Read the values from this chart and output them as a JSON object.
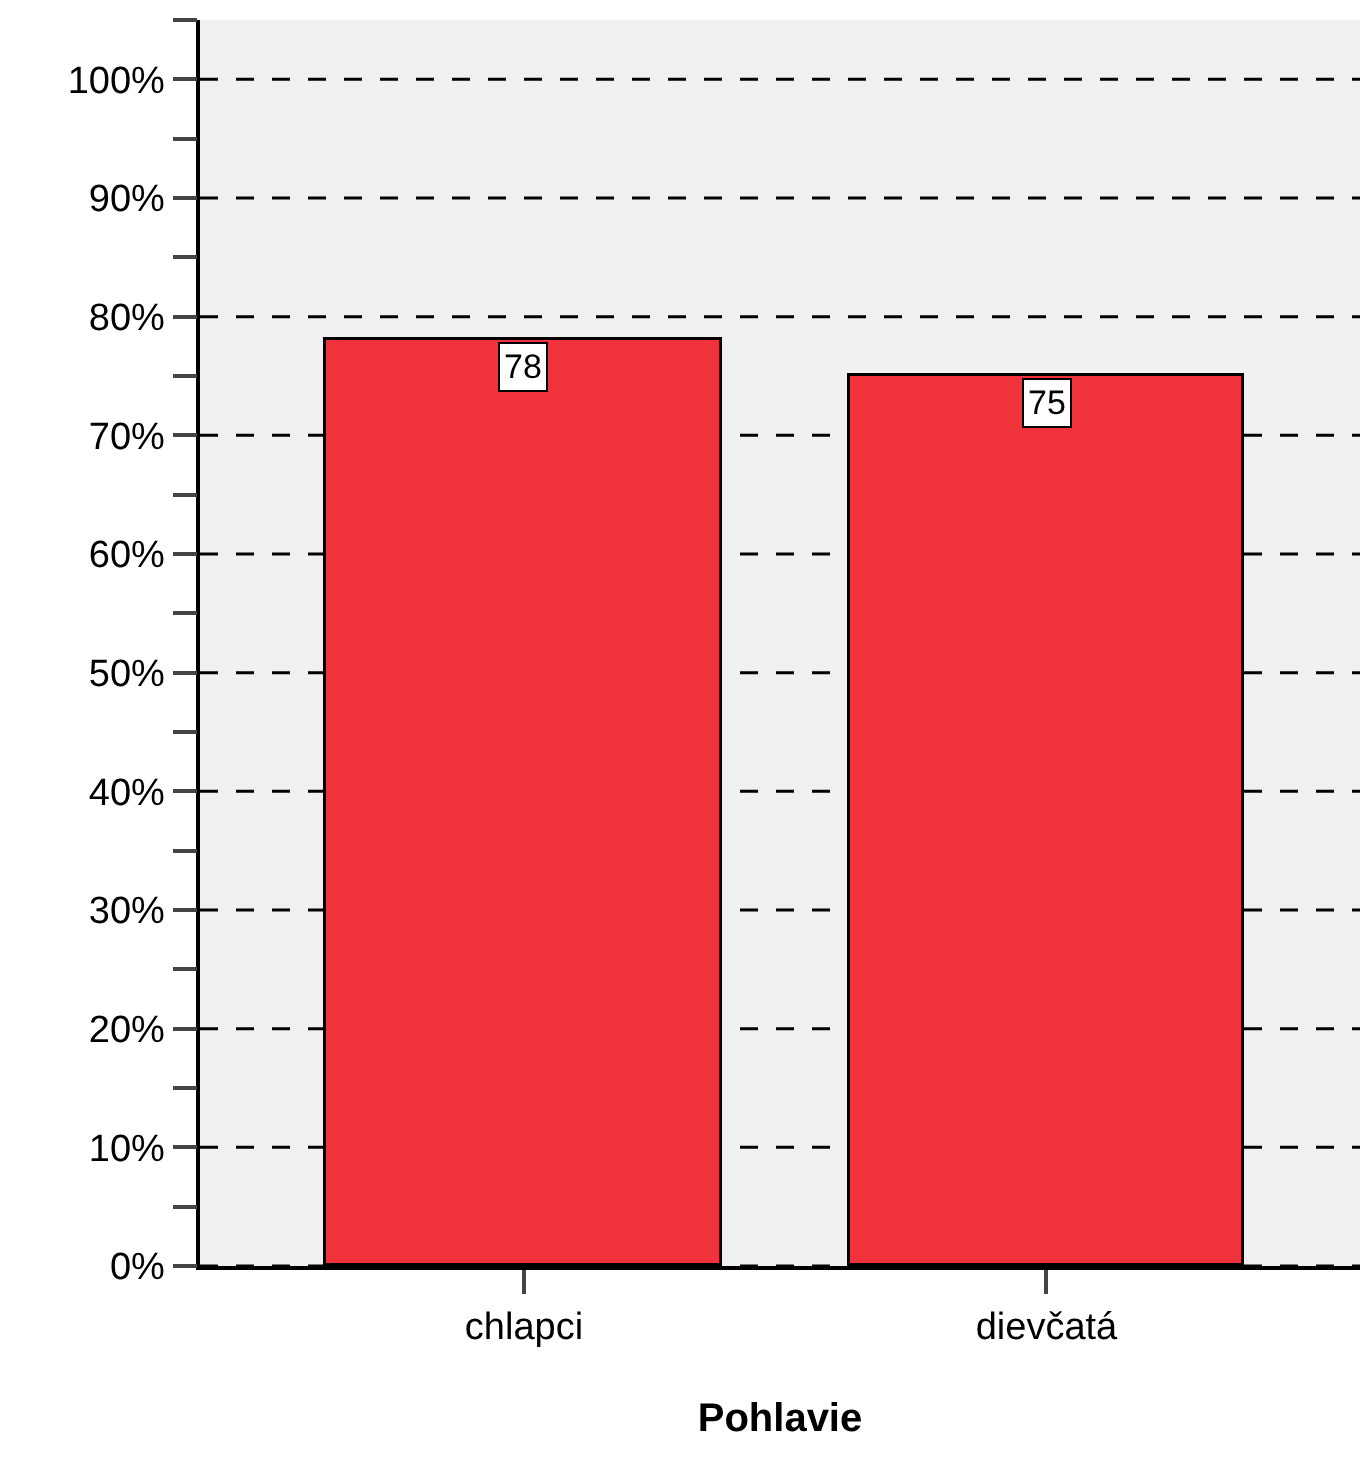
{
  "chart_data": {
    "type": "bar",
    "xlabel": "Pohlavie",
    "categories": [
      "chlapci",
      "dievčatá"
    ],
    "values": [
      78,
      75
    ],
    "color": "#f0333b",
    "data_labels": true,
    "ylim": [
      0,
      105
    ],
    "yticks": [
      {
        "value": 0,
        "label": "0%"
      },
      {
        "value": 5,
        "label": null
      },
      {
        "value": 10,
        "label": "10%"
      },
      {
        "value": 15,
        "label": null
      },
      {
        "value": 20,
        "label": "20%"
      },
      {
        "value": 25,
        "label": null
      },
      {
        "value": 30,
        "label": "30%"
      },
      {
        "value": 35,
        "label": null
      },
      {
        "value": 40,
        "label": "40%"
      },
      {
        "value": 45,
        "label": null
      },
      {
        "value": 50,
        "label": "50%"
      },
      {
        "value": 55,
        "label": null
      },
      {
        "value": 60,
        "label": "60%"
      },
      {
        "value": 65,
        "label": null
      },
      {
        "value": 70,
        "label": "70%"
      },
      {
        "value": 75,
        "label": null
      },
      {
        "value": 80,
        "label": "80%"
      },
      {
        "value": 85,
        "label": null
      },
      {
        "value": 90,
        "label": "90%"
      },
      {
        "value": 95,
        "label": null
      },
      {
        "value": 100,
        "label": "100%"
      },
      {
        "value": 105,
        "label": null
      }
    ],
    "grid": "y"
  }
}
